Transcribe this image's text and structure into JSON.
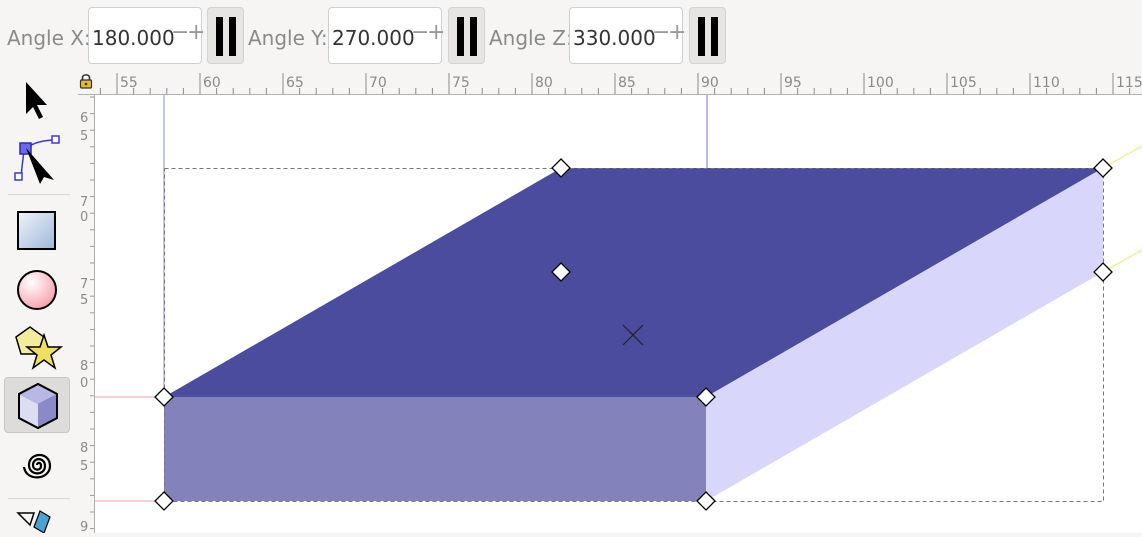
{
  "toolbar": {
    "angle_x": {
      "label": "Angle X:",
      "value": "180.000"
    },
    "angle_y": {
      "label": "Angle Y:",
      "value": "270.000"
    },
    "angle_z": {
      "label": "Angle Z:",
      "value": "330.000"
    },
    "decrement_glyph": "−",
    "increment_glyph": "+"
  },
  "ruler": {
    "top_labels": [
      "55",
      "60",
      "65",
      "70",
      "75",
      "80",
      "85",
      "90",
      "95",
      "100",
      "105",
      "110",
      "115"
    ],
    "left_labels": [
      "6",
      "5",
      "7",
      "0",
      "7",
      "5",
      "8",
      "0",
      "8",
      "5",
      "9"
    ]
  },
  "tools": [
    {
      "name": "selector-tool",
      "icon": "arrow-pointer-icon",
      "active": false
    },
    {
      "name": "node-tool",
      "icon": "node-edit-icon",
      "active": false
    },
    {
      "name": "rectangle-tool",
      "icon": "rectangle-icon",
      "active": false
    },
    {
      "name": "ellipse-tool",
      "icon": "circle-icon",
      "active": false
    },
    {
      "name": "star-tool",
      "icon": "star-polygon-icon",
      "active": false
    },
    {
      "name": "3d-box-tool",
      "icon": "3d-box-icon",
      "active": true
    },
    {
      "name": "spiral-tool",
      "icon": "spiral-icon",
      "active": false
    },
    {
      "name": "pencil-tool",
      "icon": "pencil-icon",
      "active": false
    }
  ],
  "colors": {
    "box_top": "#4b4c9e",
    "box_front": "#8482bb",
    "box_side": "#d8d7fb",
    "guide_blue": "#7b7be0",
    "guide_red": "#f2a0a6",
    "guide_yellow": "#f0ee9a",
    "ui_bg": "#f6f5f4"
  }
}
